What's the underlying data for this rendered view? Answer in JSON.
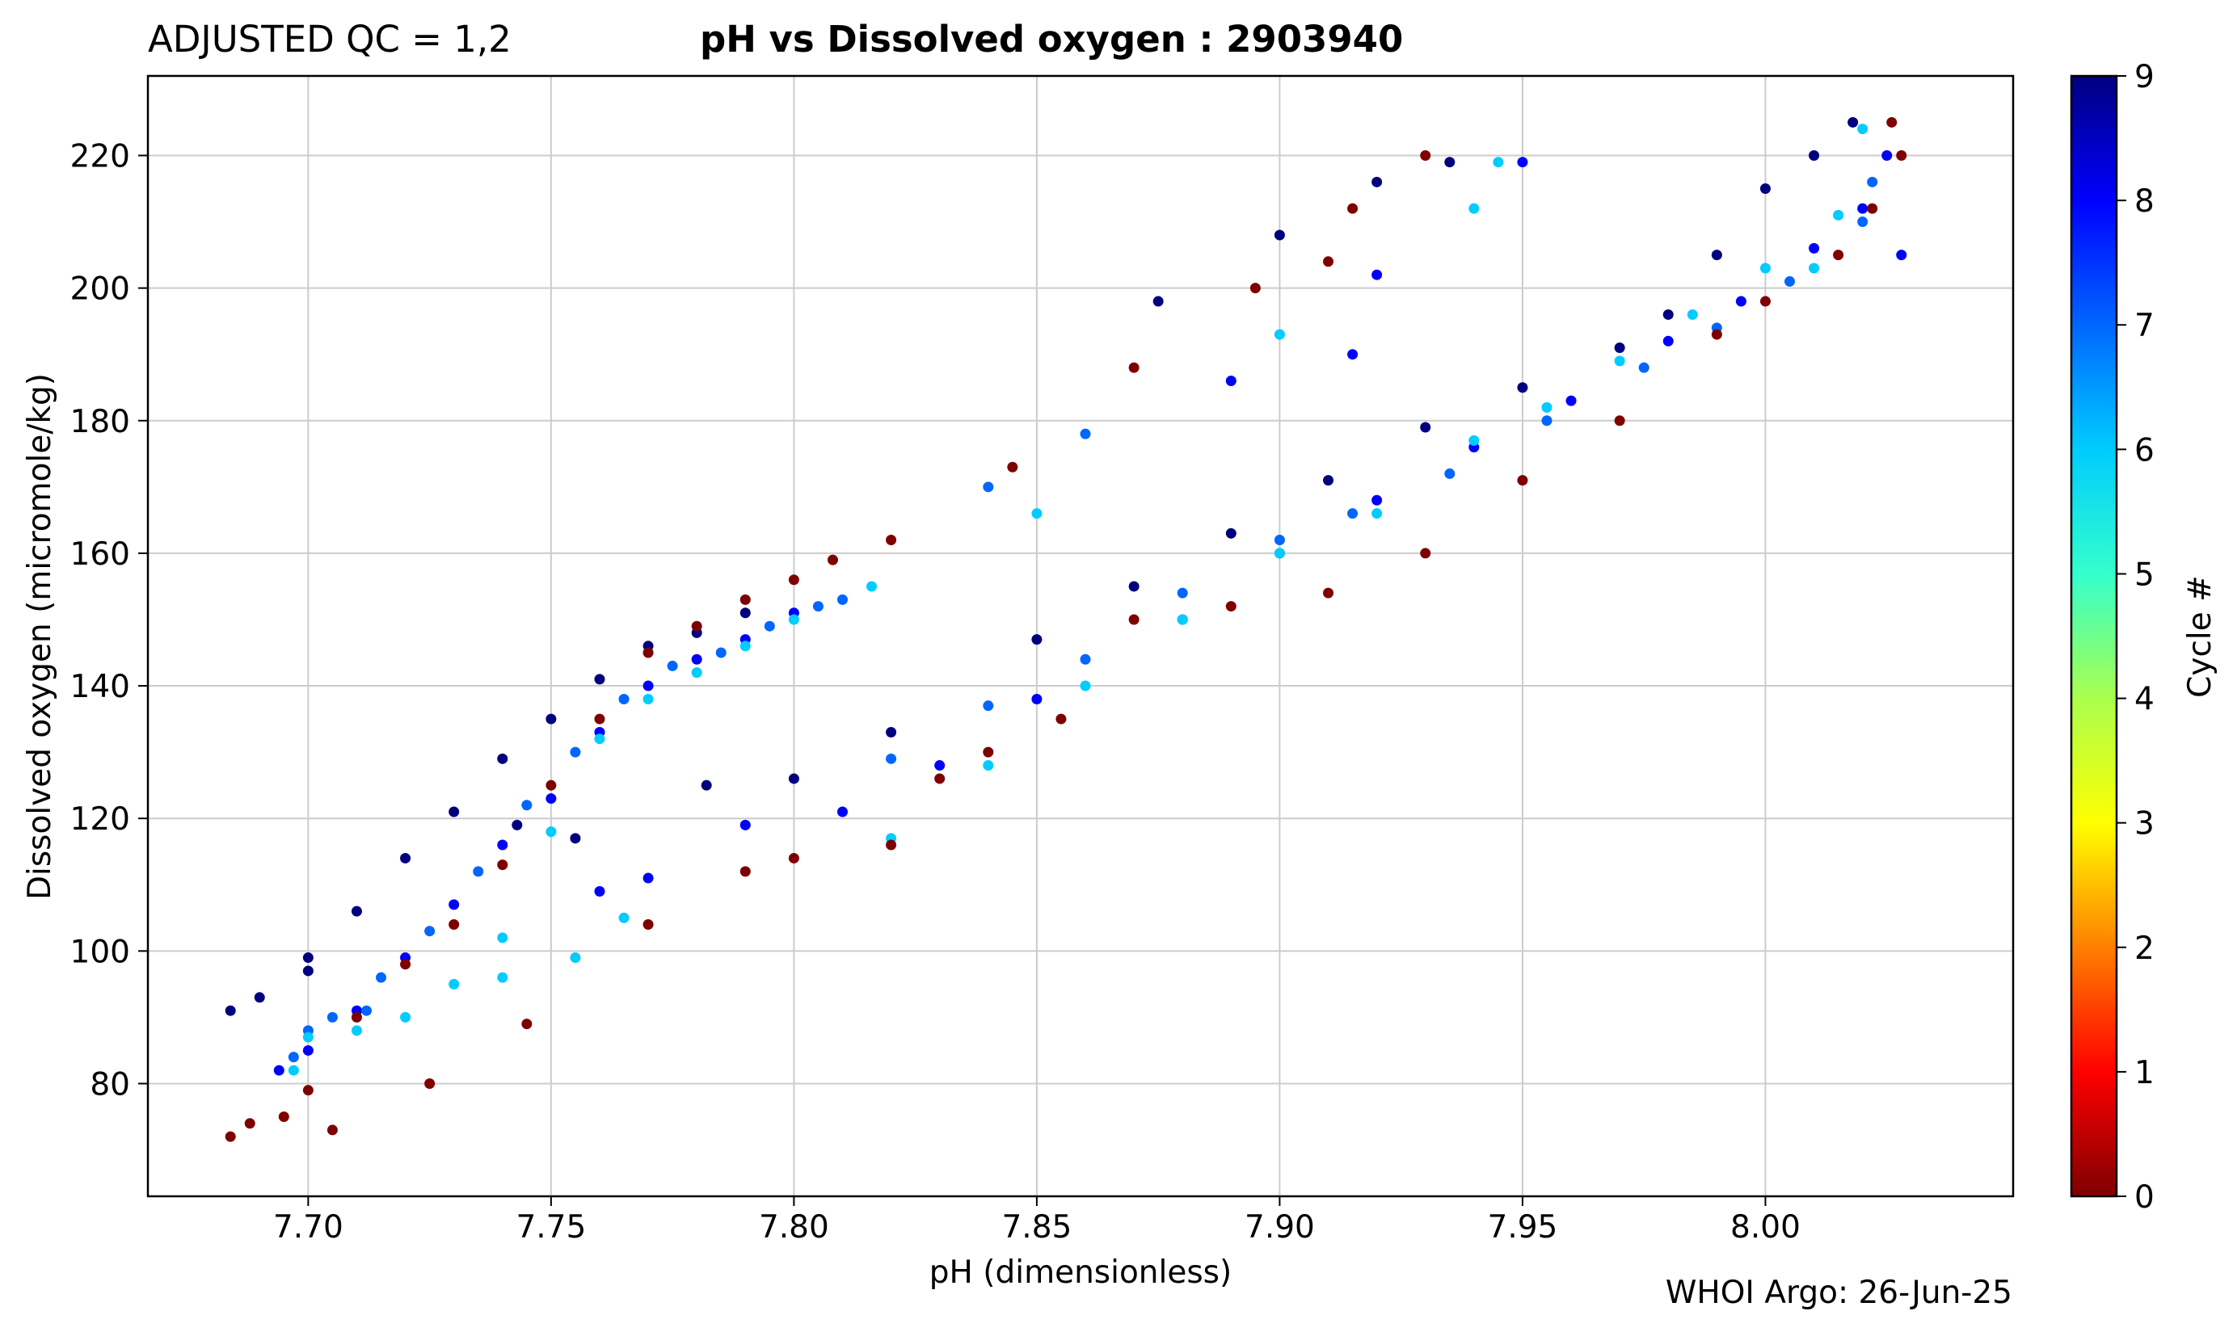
{
  "header": {
    "qc_label": "ADJUSTED QC = 1,2",
    "title": "pH vs Dissolved oxygen : 2903940"
  },
  "footer": {
    "credit": "WHOI Argo: 26-Jun-25"
  },
  "chart_data": {
    "type": "scatter",
    "title": "pH vs Dissolved oxygen : 2903940",
    "xlabel": "pH  (dimensionless)",
    "ylabel": "Dissolved oxygen  (micromole/kg)",
    "xlim": [
      7.667,
      8.051
    ],
    "ylim": [
      63,
      232
    ],
    "xticks": [
      7.7,
      7.75,
      7.8,
      7.85,
      7.9,
      7.95,
      8.0
    ],
    "xtick_labels": [
      "7.70",
      "7.75",
      "7.80",
      "7.85",
      "7.90",
      "7.95",
      "8.00"
    ],
    "yticks": [
      80,
      100,
      120,
      140,
      160,
      180,
      200,
      220
    ],
    "ytick_labels": [
      "80",
      "100",
      "120",
      "140",
      "160",
      "180",
      "200",
      "220"
    ],
    "grid": true,
    "colorbar": {
      "label": "Cycle #",
      "colormap": "jet",
      "min": 0,
      "max": 9,
      "ticks": [
        0,
        1,
        2,
        3,
        4,
        5,
        6,
        7,
        8,
        9
      ],
      "tick_labels": [
        "0",
        "1",
        "2",
        "3",
        "4",
        "5",
        "6",
        "7",
        "8",
        "9"
      ]
    },
    "series": [
      {
        "cycle": 9,
        "color": "#00007f",
        "points": [
          [
            7.684,
            91
          ],
          [
            7.69,
            93
          ],
          [
            7.7,
            99
          ],
          [
            7.71,
            106
          ],
          [
            7.72,
            114
          ],
          [
            7.73,
            121
          ],
          [
            7.74,
            129
          ],
          [
            7.75,
            135
          ],
          [
            7.76,
            141
          ],
          [
            7.77,
            146
          ],
          [
            7.78,
            148
          ],
          [
            7.79,
            151
          ],
          [
            7.743,
            119
          ],
          [
            7.755,
            117
          ],
          [
            7.7,
            97
          ],
          [
            7.782,
            125
          ],
          [
            7.8,
            126
          ],
          [
            7.82,
            133
          ],
          [
            7.85,
            147
          ],
          [
            7.87,
            155
          ],
          [
            7.89,
            163
          ],
          [
            7.91,
            171
          ],
          [
            7.93,
            179
          ],
          [
            7.95,
            185
          ],
          [
            7.97,
            191
          ],
          [
            7.98,
            196
          ],
          [
            7.99,
            205
          ],
          [
            8.0,
            215
          ],
          [
            8.01,
            220
          ],
          [
            8.018,
            225
          ],
          [
            7.875,
            198
          ],
          [
            7.9,
            208
          ],
          [
            7.92,
            216
          ],
          [
            7.935,
            219
          ]
        ]
      },
      {
        "cycle": 8,
        "color": "#0000ff",
        "points": [
          [
            7.694,
            82
          ],
          [
            7.7,
            85
          ],
          [
            7.71,
            91
          ],
          [
            7.72,
            99
          ],
          [
            7.73,
            107
          ],
          [
            7.74,
            116
          ],
          [
            7.75,
            123
          ],
          [
            7.76,
            133
          ],
          [
            7.77,
            140
          ],
          [
            7.78,
            144
          ],
          [
            7.79,
            147
          ],
          [
            7.8,
            151
          ],
          [
            7.76,
            109
          ],
          [
            7.77,
            111
          ],
          [
            7.79,
            119
          ],
          [
            7.81,
            121
          ],
          [
            7.83,
            128
          ],
          [
            7.85,
            138
          ],
          [
            7.88,
            150
          ],
          [
            7.9,
            160
          ],
          [
            7.92,
            168
          ],
          [
            7.94,
            176
          ],
          [
            7.96,
            183
          ],
          [
            7.98,
            192
          ],
          [
            7.995,
            198
          ],
          [
            8.01,
            206
          ],
          [
            8.02,
            212
          ],
          [
            8.025,
            220
          ],
          [
            8.028,
            205
          ],
          [
            7.92,
            202
          ],
          [
            7.95,
            219
          ],
          [
            7.89,
            186
          ],
          [
            7.915,
            190
          ]
        ]
      },
      {
        "cycle": 7,
        "color": "#0066ff",
        "points": [
          [
            7.697,
            84
          ],
          [
            7.705,
            90
          ],
          [
            7.715,
            96
          ],
          [
            7.725,
            103
          ],
          [
            7.735,
            112
          ],
          [
            7.745,
            122
          ],
          [
            7.755,
            130
          ],
          [
            7.765,
            138
          ],
          [
            7.775,
            143
          ],
          [
            7.785,
            145
          ],
          [
            7.795,
            149
          ],
          [
            7.805,
            152
          ],
          [
            7.81,
            153
          ],
          [
            7.7,
            88
          ],
          [
            7.712,
            91
          ],
          [
            7.82,
            129
          ],
          [
            7.84,
            137
          ],
          [
            7.86,
            144
          ],
          [
            7.88,
            154
          ],
          [
            7.9,
            162
          ],
          [
            7.915,
            166
          ],
          [
            7.935,
            172
          ],
          [
            7.955,
            180
          ],
          [
            7.975,
            188
          ],
          [
            7.99,
            194
          ],
          [
            8.005,
            201
          ],
          [
            8.02,
            210
          ],
          [
            8.022,
            216
          ],
          [
            7.84,
            170
          ],
          [
            7.86,
            178
          ]
        ]
      },
      {
        "cycle": 6,
        "color": "#00ccff",
        "points": [
          [
            7.697,
            82
          ],
          [
            7.7,
            87
          ],
          [
            7.71,
            88
          ],
          [
            7.72,
            90
          ],
          [
            7.73,
            95
          ],
          [
            7.74,
            102
          ],
          [
            7.75,
            118
          ],
          [
            7.76,
            132
          ],
          [
            7.77,
            138
          ],
          [
            7.78,
            142
          ],
          [
            7.79,
            146
          ],
          [
            7.8,
            150
          ],
          [
            7.816,
            155
          ],
          [
            7.74,
            96
          ],
          [
            7.755,
            99
          ],
          [
            7.765,
            105
          ],
          [
            7.82,
            117
          ],
          [
            7.84,
            128
          ],
          [
            7.86,
            140
          ],
          [
            7.88,
            150
          ],
          [
            7.9,
            160
          ],
          [
            7.92,
            166
          ],
          [
            7.94,
            177
          ],
          [
            7.955,
            182
          ],
          [
            7.97,
            189
          ],
          [
            7.985,
            196
          ],
          [
            8.0,
            203
          ],
          [
            8.015,
            211
          ],
          [
            8.02,
            224
          ],
          [
            8.01,
            203
          ],
          [
            7.94,
            212
          ],
          [
            7.945,
            219
          ],
          [
            7.9,
            193
          ],
          [
            7.85,
            166
          ]
        ]
      },
      {
        "cycle": 0,
        "color": "#7f0000",
        "points": [
          [
            7.684,
            72
          ],
          [
            7.688,
            74
          ],
          [
            7.695,
            75
          ],
          [
            7.7,
            79
          ],
          [
            7.705,
            73
          ],
          [
            7.71,
            90
          ],
          [
            7.72,
            98
          ],
          [
            7.73,
            104
          ],
          [
            7.74,
            113
          ],
          [
            7.75,
            125
          ],
          [
            7.76,
            135
          ],
          [
            7.77,
            145
          ],
          [
            7.78,
            149
          ],
          [
            7.79,
            153
          ],
          [
            7.8,
            156
          ],
          [
            7.808,
            159
          ],
          [
            7.725,
            80
          ],
          [
            7.745,
            89
          ],
          [
            7.77,
            104
          ],
          [
            7.79,
            112
          ],
          [
            7.8,
            114
          ],
          [
            7.82,
            116
          ],
          [
            7.83,
            126
          ],
          [
            7.84,
            130
          ],
          [
            7.855,
            135
          ],
          [
            7.87,
            150
          ],
          [
            7.89,
            152
          ],
          [
            7.91,
            154
          ],
          [
            7.93,
            160
          ],
          [
            7.95,
            171
          ],
          [
            7.97,
            180
          ],
          [
            7.99,
            193
          ],
          [
            8.0,
            198
          ],
          [
            8.015,
            205
          ],
          [
            8.022,
            212
          ],
          [
            8.028,
            220
          ],
          [
            8.026,
            225
          ],
          [
            7.82,
            162
          ],
          [
            7.845,
            173
          ],
          [
            7.87,
            188
          ],
          [
            7.895,
            200
          ],
          [
            7.91,
            204
          ],
          [
            7.93,
            220
          ],
          [
            7.915,
            212
          ]
        ]
      }
    ]
  }
}
